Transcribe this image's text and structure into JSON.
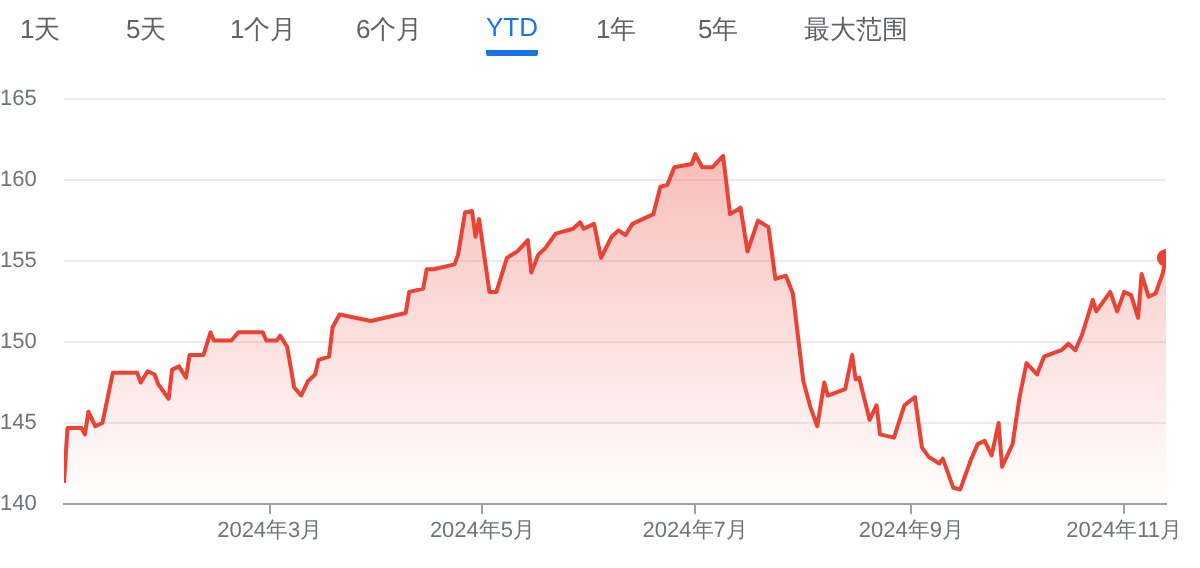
{
  "chart_data": {
    "type": "area",
    "annotations": [
      "1天",
      "5天",
      "1个月",
      "6个月",
      "YTD",
      "1年",
      "5年",
      "最大范围"
    ],
    "x": [
      "2024-01-02",
      "2024-01-03",
      "2024-01-07",
      "2024-01-08",
      "2024-01-09",
      "2024-01-11",
      "2024-01-13",
      "2024-01-16",
      "2024-01-23",
      "2024-01-24",
      "2024-01-26",
      "2024-01-28",
      "2024-01-29",
      "2024-02-01",
      "2024-02-02",
      "2024-02-04",
      "2024-02-06",
      "2024-02-07",
      "2024-02-11",
      "2024-02-13",
      "2024-02-14",
      "2024-02-19",
      "2024-02-21",
      "2024-02-28",
      "2024-02-29",
      "2024-03-03",
      "2024-03-04",
      "2024-03-06",
      "2024-03-08",
      "2024-03-10",
      "2024-03-12",
      "2024-03-14",
      "2024-03-15",
      "2024-03-18",
      "2024-03-19",
      "2024-03-21",
      "2024-03-30",
      "2024-04-03",
      "2024-04-09",
      "2024-04-10",
      "2024-04-14",
      "2024-04-15",
      "2024-04-17",
      "2024-04-23",
      "2024-04-24",
      "2024-04-26",
      "2024-04-28",
      "2024-04-29",
      "2024-04-30",
      "2024-05-03",
      "2024-05-05",
      "2024-05-08",
      "2024-05-11",
      "2024-05-14",
      "2024-05-15",
      "2024-05-17",
      "2024-05-19",
      "2024-05-22",
      "2024-05-27",
      "2024-05-29",
      "2024-05-30",
      "2024-06-02",
      "2024-06-04",
      "2024-06-07",
      "2024-06-09",
      "2024-06-11",
      "2024-06-13",
      "2024-06-19",
      "2024-06-21",
      "2024-06-23",
      "2024-06-25",
      "2024-06-30",
      "2024-07-01",
      "2024-07-03",
      "2024-07-06",
      "2024-07-09",
      "2024-07-11",
      "2024-07-14",
      "2024-07-16",
      "2024-07-19",
      "2024-07-22",
      "2024-07-24",
      "2024-07-27",
      "2024-07-29",
      "2024-08-01",
      "2024-08-03",
      "2024-08-05",
      "2024-08-07",
      "2024-08-08",
      "2024-08-13",
      "2024-08-15",
      "2024-08-16",
      "2024-08-17",
      "2024-08-20",
      "2024-08-22",
      "2024-08-23",
      "2024-08-27",
      "2024-08-30",
      "2024-09-02",
      "2024-09-04",
      "2024-09-06",
      "2024-09-09",
      "2024-09-10",
      "2024-09-13",
      "2024-09-15",
      "2024-09-18",
      "2024-09-20",
      "2024-09-22",
      "2024-09-24",
      "2024-09-26",
      "2024-09-27",
      "2024-09-30",
      "2024-10-02",
      "2024-10-04",
      "2024-10-07",
      "2024-10-09",
      "2024-10-14",
      "2024-10-16",
      "2024-10-18",
      "2024-10-20",
      "2024-10-23",
      "2024-10-24",
      "2024-10-28",
      "2024-10-30",
      "2024-11-01",
      "2024-11-03",
      "2024-11-05",
      "2024-11-06",
      "2024-11-08",
      "2024-11-10",
      "2024-11-12",
      "2024-11-13"
    ],
    "series": [
      {
        "color": "#ea4335",
        "values": [
          141.3,
          144.7,
          144.7,
          144.3,
          145.7,
          144.8,
          145,
          148.1,
          148.1,
          147.5,
          148.2,
          148,
          147.4,
          146.5,
          148.3,
          148.5,
          147.8,
          149.2,
          149.2,
          150.6,
          150.1,
          150.1,
          150.6,
          150.6,
          150.1,
          150.1,
          150.4,
          149.7,
          147.2,
          146.7,
          147.6,
          148,
          148.9,
          149.1,
          150.9,
          151.7,
          151.3,
          151.5,
          151.8,
          153.1,
          153.3,
          154.5,
          154.5,
          154.8,
          155.4,
          158,
          158.1,
          156.5,
          157.6,
          153.1,
          153.1,
          155.2,
          155.6,
          156.3,
          154.3,
          155.4,
          155.8,
          156.7,
          157,
          157.4,
          157,
          157.3,
          155.2,
          156.5,
          156.9,
          156.6,
          157.3,
          157.9,
          159.6,
          159.7,
          160.8,
          161,
          161.6,
          160.8,
          160.8,
          161.5,
          157.9,
          158.3,
          155.6,
          157.5,
          157.1,
          153.9,
          154.1,
          153,
          147.6,
          146,
          144.8,
          147.5,
          146.7,
          147.1,
          149.2,
          147.7,
          147.8,
          145.2,
          146.1,
          144.3,
          144.1,
          146.1,
          146.6,
          143.5,
          142.9,
          142.5,
          142.8,
          141,
          140.9,
          142.7,
          143.7,
          143.9,
          143,
          145,
          142.3,
          143.7,
          146.6,
          148.7,
          148,
          149.1,
          149.5,
          149.9,
          149.5,
          150.5,
          152.6,
          151.9,
          153.1,
          151.9,
          153.1,
          152.9,
          151.5,
          154.2,
          152.8,
          153,
          154.2,
          155.2
        ]
      }
    ],
    "xlim": [
      "2024-01-02",
      "2024-11-13"
    ],
    "xticks": [
      {
        "value": "2024-03-01",
        "label": "2024年3月"
      },
      {
        "value": "2024-05-01",
        "label": "2024年5月"
      },
      {
        "value": "2024-07-01",
        "label": "2024年7月"
      },
      {
        "value": "2024-09-01",
        "label": "2024年9月"
      },
      {
        "value": "2024-11-01",
        "label": "2024年11月"
      }
    ],
    "ylim": [
      140,
      165
    ],
    "yticks": [
      140,
      145,
      150,
      155,
      160,
      165
    ],
    "grid": "y",
    "legend": false
  }
}
